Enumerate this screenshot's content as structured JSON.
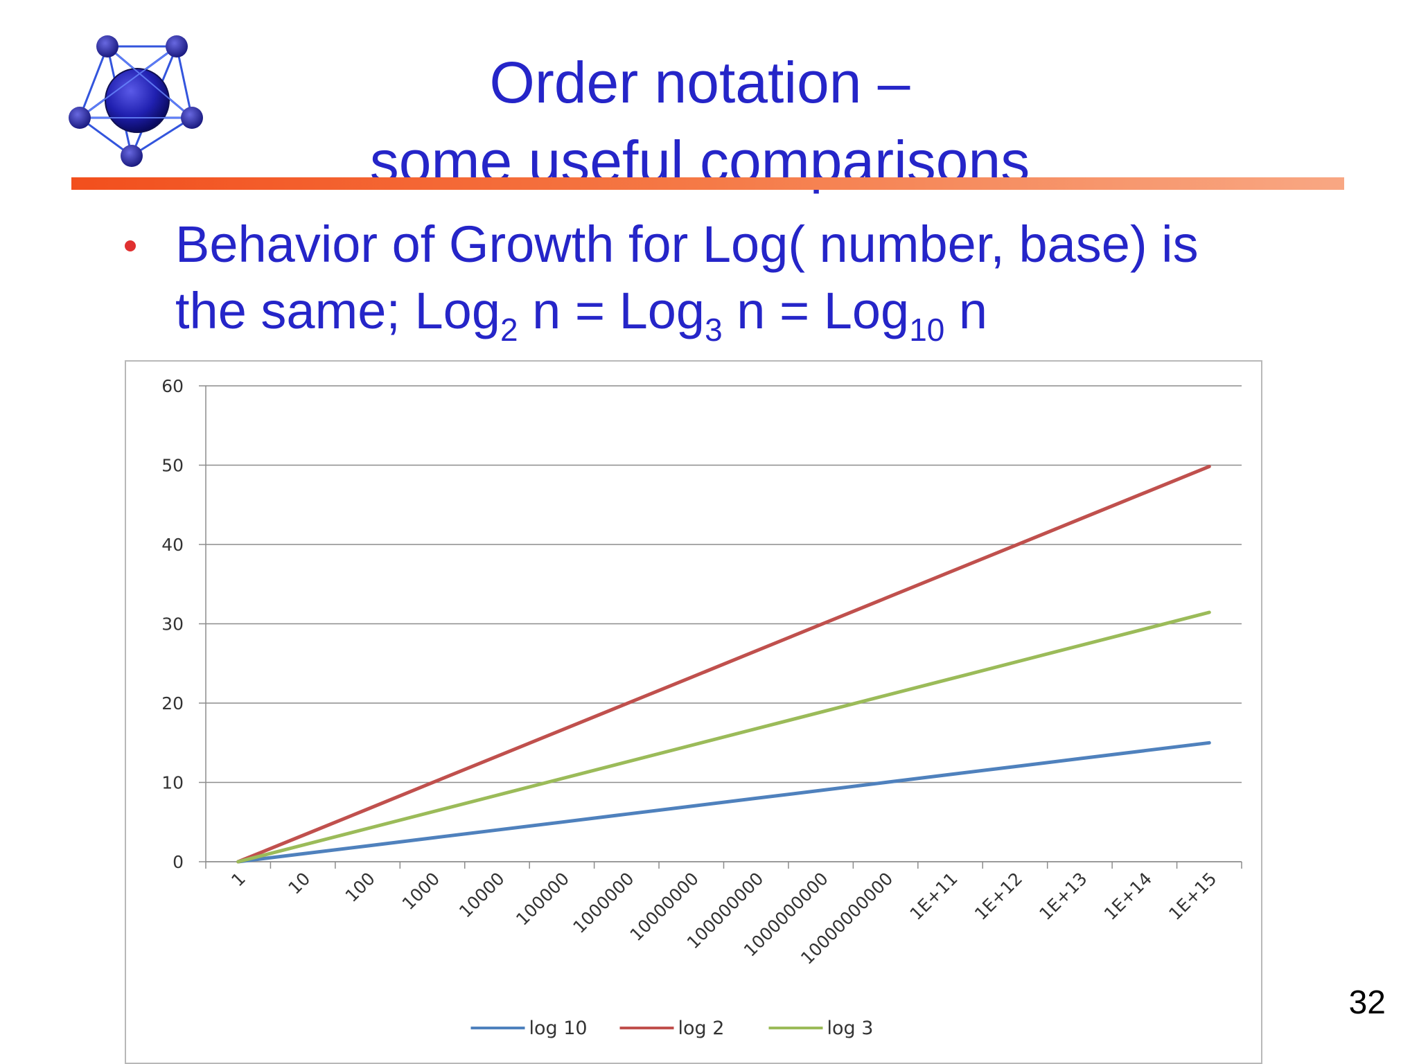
{
  "slide": {
    "title_line1": "Order notation –",
    "title_line2": "some useful comparisons",
    "bullet": {
      "line1": "Behavior of Growth for Log( number, base) is",
      "line2_part1": "the same; Log",
      "sub1": "2",
      "line2_part2": " n = Log",
      "sub2": "3",
      "line2_part3": " n = Log",
      "sub3": "10",
      "line2_part4": " n"
    },
    "page_number": "32",
    "colors": {
      "title": "#2525c8",
      "bullet_dot": "#e03030",
      "rule_start": "#f24f1d",
      "rule_end": "#f8a783"
    },
    "logo_icon": "network-sphere-icon"
  },
  "chart_data": {
    "type": "line",
    "title": "",
    "xlabel": "",
    "ylabel": "",
    "categories": [
      "1",
      "10",
      "100",
      "1000",
      "10000",
      "100000",
      "1000000",
      "10000000",
      "100000000",
      "1000000000",
      "10000000000",
      "1E+11",
      "1E+12",
      "1E+13",
      "1E+14",
      "1E+15"
    ],
    "ylim": [
      0,
      60
    ],
    "yticks": [
      "0",
      "10",
      "20",
      "30",
      "40",
      "50",
      "60"
    ],
    "grid": true,
    "legend_position": "bottom",
    "series": [
      {
        "name": "log 10",
        "color": "#4f81bd",
        "values": [
          0,
          1,
          2,
          3,
          4,
          5,
          6,
          7,
          8,
          9,
          10,
          11,
          12,
          13,
          14,
          15
        ]
      },
      {
        "name": "log 2",
        "color": "#c0504d",
        "values": [
          0,
          3.32,
          6.64,
          9.97,
          13.29,
          16.61,
          19.93,
          23.25,
          26.58,
          29.9,
          33.22,
          36.54,
          39.86,
          43.19,
          46.51,
          49.83
        ]
      },
      {
        "name": "log 3",
        "color": "#9bbb59",
        "values": [
          0,
          2.1,
          4.19,
          6.29,
          8.38,
          10.48,
          12.58,
          14.67,
          16.77,
          18.86,
          20.96,
          23.05,
          25.15,
          27.25,
          29.34,
          31.44
        ]
      }
    ]
  }
}
